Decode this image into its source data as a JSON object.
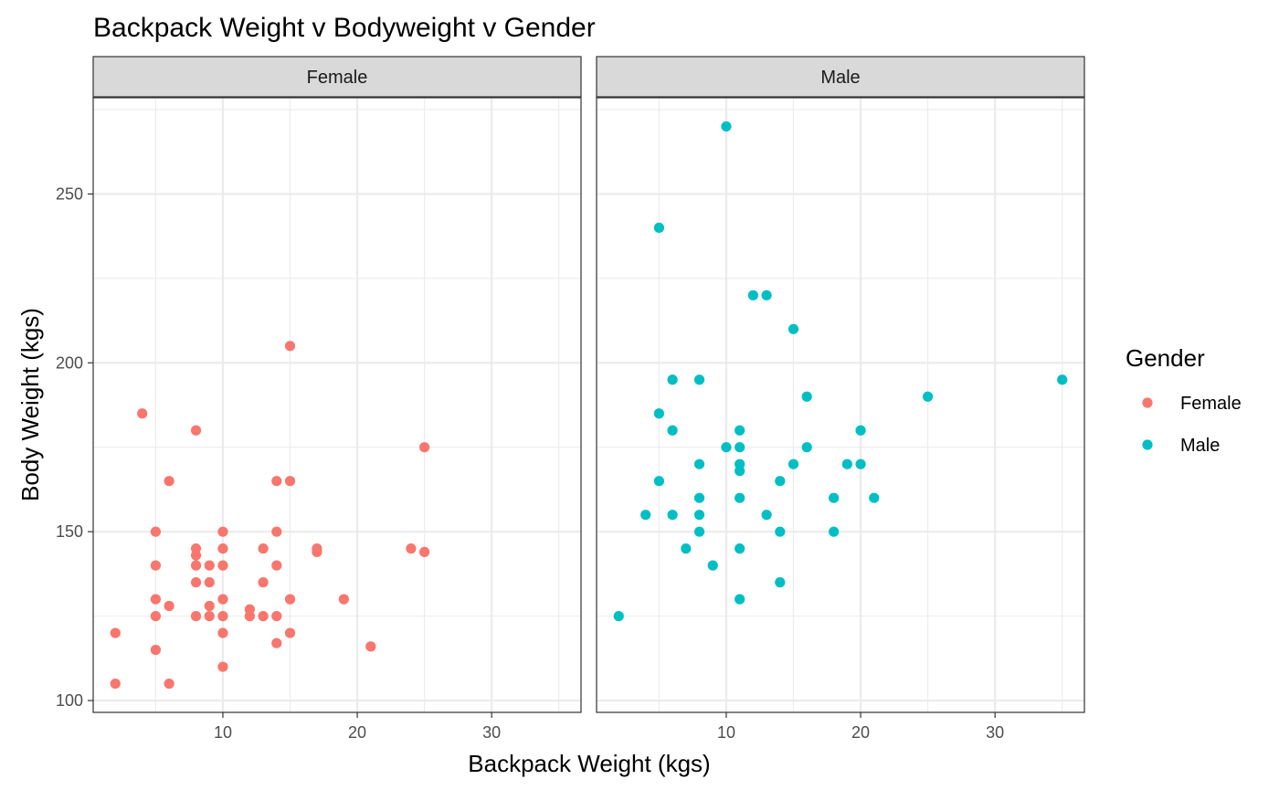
{
  "chart_data": {
    "type": "scatter",
    "title": "Backpack Weight v Bodyweight v Gender",
    "xlabel": "Backpack Weight (kgs)",
    "ylabel": "Body Weight (kgs)",
    "xlim": [
      0.35,
      36.65
    ],
    "ylim": [
      96.5,
      278.5
    ],
    "x_ticks": [
      10,
      20,
      30
    ],
    "y_ticks": [
      100,
      150,
      200,
      250
    ],
    "grid": true,
    "facets": [
      "Female",
      "Male"
    ],
    "legend": {
      "title": "Gender",
      "position": "right",
      "entries": [
        {
          "label": "Female",
          "color": "#F8766D"
        },
        {
          "label": "Male",
          "color": "#00BFC4"
        }
      ]
    },
    "series": [
      {
        "name": "Female",
        "color": "#F8766D",
        "points": [
          [
            2,
            105
          ],
          [
            2,
            120
          ],
          [
            4,
            185
          ],
          [
            5,
            150
          ],
          [
            5,
            140
          ],
          [
            5,
            130
          ],
          [
            5,
            125
          ],
          [
            5,
            115
          ],
          [
            6,
            165
          ],
          [
            6,
            128
          ],
          [
            6,
            105
          ],
          [
            8,
            180
          ],
          [
            8,
            145
          ],
          [
            8,
            143
          ],
          [
            8,
            140
          ],
          [
            8,
            135
          ],
          [
            8,
            125
          ],
          [
            9,
            140
          ],
          [
            9,
            135
          ],
          [
            9,
            128
          ],
          [
            9,
            125
          ],
          [
            10,
            150
          ],
          [
            10,
            145
          ],
          [
            10,
            140
          ],
          [
            10,
            130
          ],
          [
            10,
            125
          ],
          [
            10,
            120
          ],
          [
            10,
            110
          ],
          [
            12,
            127
          ],
          [
            12,
            125
          ],
          [
            13,
            145
          ],
          [
            13,
            135
          ],
          [
            13,
            125
          ],
          [
            14,
            165
          ],
          [
            14,
            150
          ],
          [
            14,
            140
          ],
          [
            14,
            125
          ],
          [
            14,
            117
          ],
          [
            15,
            205
          ],
          [
            15,
            165
          ],
          [
            15,
            130
          ],
          [
            15,
            120
          ],
          [
            17,
            145
          ],
          [
            17,
            144
          ],
          [
            19,
            130
          ],
          [
            21,
            116
          ],
          [
            24,
            145
          ],
          [
            25,
            175
          ],
          [
            25,
            144
          ]
        ]
      },
      {
        "name": "Male",
        "color": "#00BFC4",
        "points": [
          [
            2,
            125
          ],
          [
            4,
            155
          ],
          [
            5,
            240
          ],
          [
            5,
            185
          ],
          [
            5,
            165
          ],
          [
            6,
            195
          ],
          [
            6,
            180
          ],
          [
            6,
            155
          ],
          [
            7,
            145
          ],
          [
            8,
            195
          ],
          [
            8,
            170
          ],
          [
            8,
            160
          ],
          [
            8,
            155
          ],
          [
            8,
            150
          ],
          [
            9,
            140
          ],
          [
            10,
            270
          ],
          [
            10,
            175
          ],
          [
            11,
            180
          ],
          [
            11,
            175
          ],
          [
            11,
            170
          ],
          [
            11,
            168
          ],
          [
            11,
            160
          ],
          [
            11,
            145
          ],
          [
            11,
            130
          ],
          [
            12,
            220
          ],
          [
            13,
            220
          ],
          [
            13,
            155
          ],
          [
            14,
            165
          ],
          [
            14,
            150
          ],
          [
            14,
            135
          ],
          [
            15,
            210
          ],
          [
            15,
            170
          ],
          [
            16,
            190
          ],
          [
            16,
            175
          ],
          [
            18,
            160
          ],
          [
            18,
            150
          ],
          [
            19,
            170
          ],
          [
            20,
            180
          ],
          [
            20,
            170
          ],
          [
            21,
            160
          ],
          [
            25,
            190
          ],
          [
            35,
            195
          ]
        ]
      }
    ]
  }
}
